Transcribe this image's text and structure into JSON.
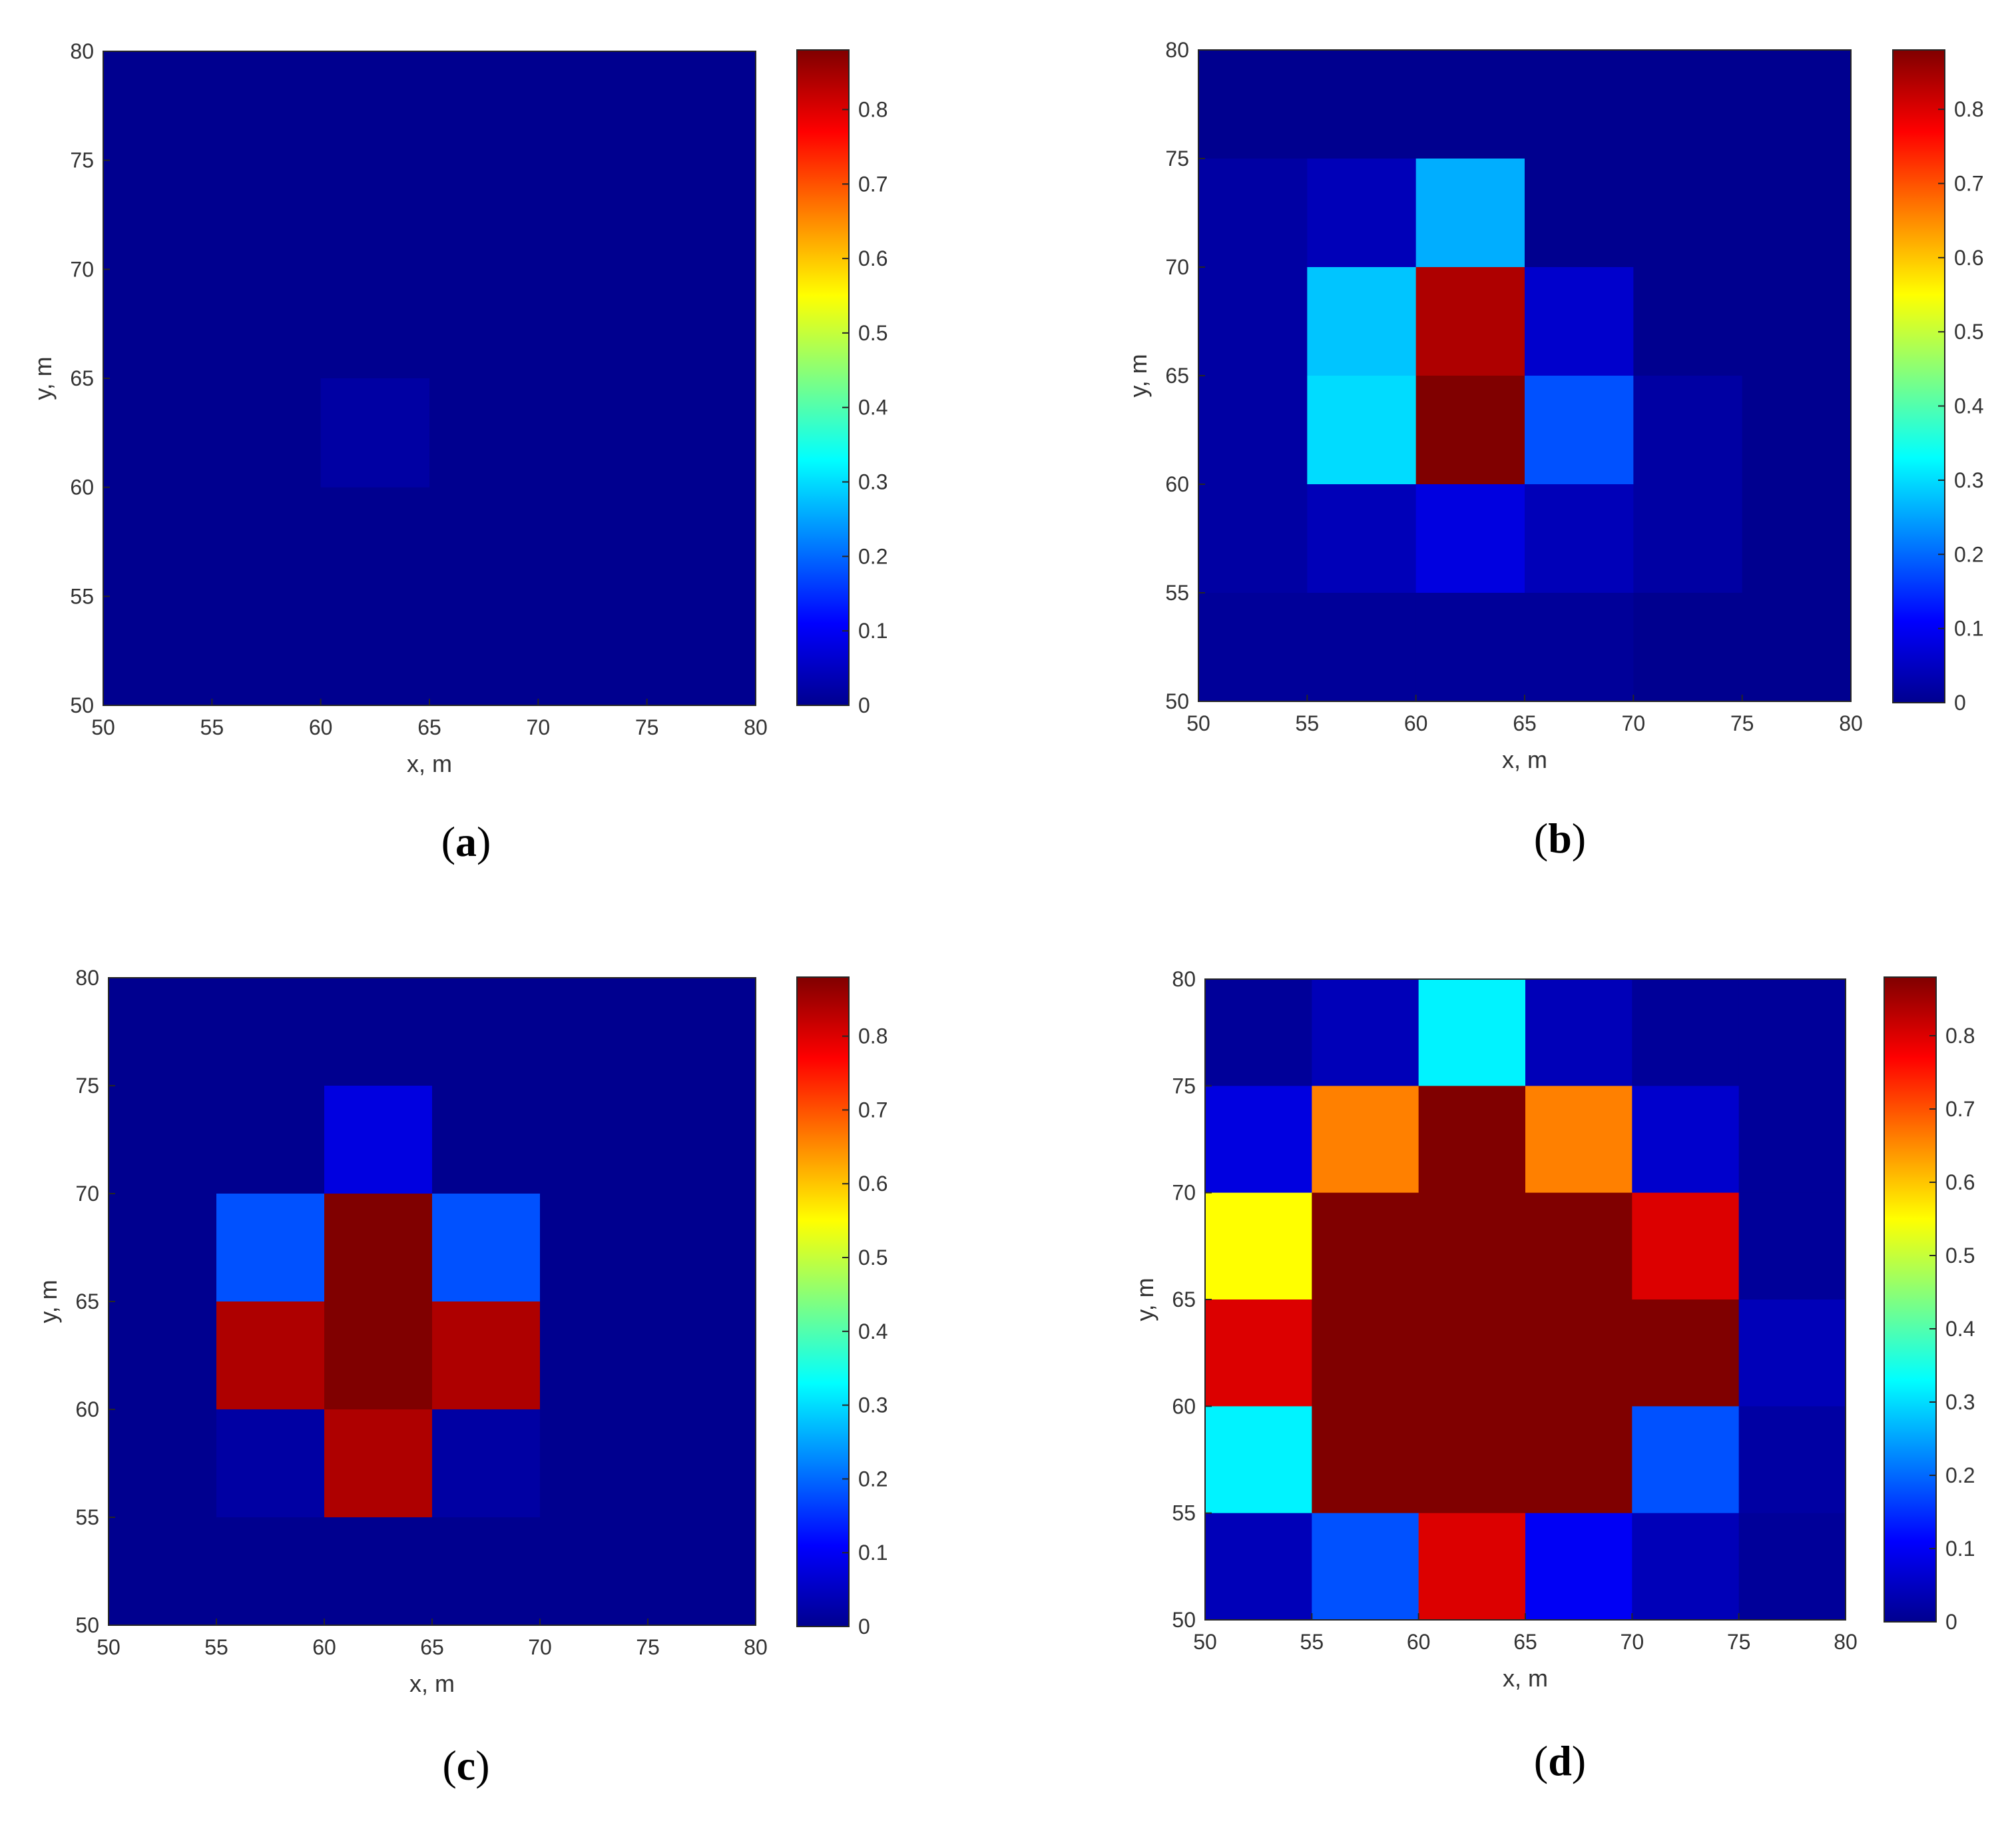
{
  "figure": {
    "colormap": "jet",
    "colormap_stops": [
      "#00008f",
      "#0000ff",
      "#0080ff",
      "#00ffff",
      "#80ff80",
      "#ffff00",
      "#ff8000",
      "#ff0000",
      "#800000"
    ],
    "clim": [
      0,
      0.88
    ]
  },
  "chart_data": [
    {
      "type": "heatmap",
      "panel": "a",
      "caption": "(a)",
      "xlabel": "x, m",
      "ylabel": "y, m",
      "xlim": [
        50,
        80
      ],
      "ylim": [
        50,
        80
      ],
      "x_ticks": [
        "50",
        "55",
        "60",
        "65",
        "70",
        "75",
        "80"
      ],
      "y_ticks": [
        "50",
        "55",
        "60",
        "65",
        "70",
        "75",
        "80"
      ],
      "colorbar_ticks": [
        "0",
        "0.1",
        "0.2",
        "0.3",
        "0.4",
        "0.5",
        "0.6",
        "0.7",
        "0.8"
      ],
      "x_edges": [
        50,
        55,
        60,
        65,
        70,
        75,
        80
      ],
      "y_edges": [
        50,
        55,
        60,
        65,
        70,
        75,
        80
      ],
      "z": [
        [
          0,
          0,
          0,
          0,
          0,
          0
        ],
        [
          0,
          0,
          0,
          0,
          0,
          0
        ],
        [
          0,
          0,
          0,
          0,
          0,
          0
        ],
        [
          0,
          0,
          0.02,
          0,
          0,
          0
        ],
        [
          0,
          0,
          0,
          0,
          0,
          0
        ],
        [
          0,
          0,
          0,
          0,
          0,
          0
        ]
      ]
    },
    {
      "type": "heatmap",
      "panel": "b",
      "caption": "(b)",
      "xlabel": "x, m",
      "ylabel": "y, m",
      "xlim": [
        50,
        80
      ],
      "ylim": [
        50,
        80
      ],
      "x_ticks": [
        "50",
        "55",
        "60",
        "65",
        "70",
        "75",
        "80"
      ],
      "y_ticks": [
        "50",
        "55",
        "60",
        "65",
        "70",
        "75",
        "80"
      ],
      "colorbar_ticks": [
        "0",
        "0.1",
        "0.2",
        "0.3",
        "0.4",
        "0.5",
        "0.6",
        "0.7",
        "0.8"
      ],
      "x_edges": [
        50,
        55,
        60,
        65,
        70,
        75,
        80
      ],
      "y_edges": [
        50,
        55,
        60,
        65,
        70,
        75,
        80
      ],
      "z": [
        [
          0,
          0,
          0,
          0,
          0,
          0
        ],
        [
          0.02,
          0.04,
          0.26,
          0,
          0,
          0
        ],
        [
          0.02,
          0.28,
          0.84,
          0.06,
          0,
          0
        ],
        [
          0.02,
          0.3,
          0.88,
          0.18,
          0.02,
          0
        ],
        [
          0.02,
          0.04,
          0.08,
          0.04,
          0.02,
          0
        ],
        [
          0.01,
          0.01,
          0.01,
          0.01,
          0,
          0
        ]
      ]
    },
    {
      "type": "heatmap",
      "panel": "c",
      "caption": "(c)",
      "xlabel": "x, m",
      "ylabel": "y, m",
      "xlim": [
        50,
        80
      ],
      "ylim": [
        50,
        80
      ],
      "x_ticks": [
        "50",
        "55",
        "60",
        "65",
        "70",
        "75",
        "80"
      ],
      "y_ticks": [
        "50",
        "55",
        "60",
        "65",
        "70",
        "75",
        "80"
      ],
      "colorbar_ticks": [
        "0",
        "0.1",
        "0.2",
        "0.3",
        "0.4",
        "0.5",
        "0.6",
        "0.7",
        "0.8"
      ],
      "x_edges": [
        50,
        55,
        60,
        65,
        70,
        75,
        80
      ],
      "y_edges": [
        50,
        55,
        60,
        65,
        70,
        75,
        80
      ],
      "z": [
        [
          0,
          0,
          0,
          0,
          0,
          0
        ],
        [
          0,
          0,
          0.08,
          0,
          0,
          0
        ],
        [
          0,
          0.18,
          0.88,
          0.18,
          0,
          0
        ],
        [
          0,
          0.84,
          0.88,
          0.84,
          0,
          0
        ],
        [
          0,
          0.02,
          0.84,
          0.02,
          0,
          0
        ],
        [
          0,
          0,
          0,
          0,
          0,
          0
        ]
      ]
    },
    {
      "type": "heatmap",
      "panel": "d",
      "caption": "(d)",
      "xlabel": "x, m",
      "ylabel": "y, m",
      "xlim": [
        50,
        80
      ],
      "ylim": [
        50,
        80
      ],
      "x_ticks": [
        "50",
        "55",
        "60",
        "65",
        "70",
        "75",
        "80"
      ],
      "y_ticks": [
        "50",
        "55",
        "60",
        "65",
        "70",
        "75",
        "80"
      ],
      "colorbar_ticks": [
        "0",
        "0.1",
        "0.2",
        "0.3",
        "0.4",
        "0.5",
        "0.6",
        "0.7",
        "0.8"
      ],
      "x_edges": [
        50,
        55,
        60,
        65,
        70,
        75,
        80
      ],
      "y_edges": [
        50,
        55,
        60,
        65,
        70,
        75,
        80
      ],
      "z": [
        [
          0.01,
          0.04,
          0.32,
          0.04,
          0.01,
          0.01
        ],
        [
          0.08,
          0.66,
          0.88,
          0.66,
          0.06,
          0.01
        ],
        [
          0.55,
          0.88,
          0.88,
          0.88,
          0.8,
          0.01
        ],
        [
          0.8,
          0.88,
          0.88,
          0.88,
          0.88,
          0.04
        ],
        [
          0.32,
          0.88,
          0.88,
          0.88,
          0.18,
          0.02
        ],
        [
          0.04,
          0.18,
          0.8,
          0.1,
          0.04,
          0.01
        ]
      ]
    }
  ]
}
